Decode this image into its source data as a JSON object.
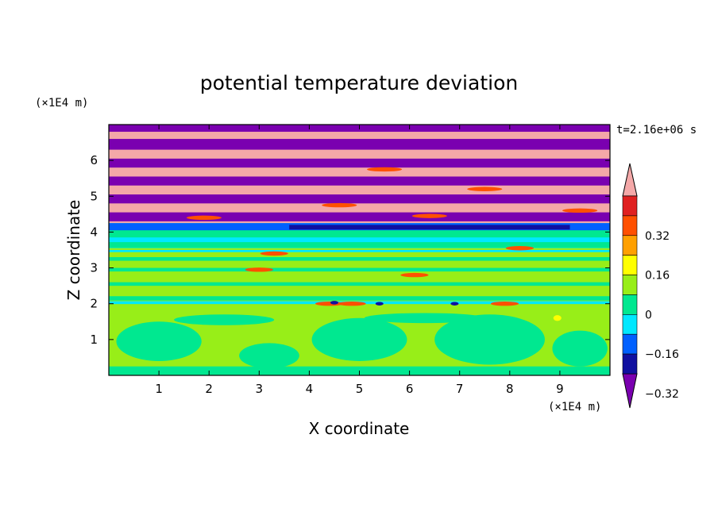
{
  "chart_data": {
    "type": "heatmap",
    "title": "potential temperature deviation",
    "xlabel": "X coordinate",
    "ylabel": "Z coordinate",
    "x_unit_label": "(×1E4 m)",
    "y_unit_label": "(×1E4 m)",
    "time_label": "t=2.16e+06 s",
    "xlim": [
      0,
      10
    ],
    "ylim": [
      0,
      7
    ],
    "x_ticks": [
      "1",
      "2",
      "3",
      "4",
      "5",
      "6",
      "7",
      "8",
      "9"
    ],
    "y_ticks": [
      "1",
      "2",
      "3",
      "4",
      "5",
      "6"
    ],
    "colorbar": {
      "levels": [
        -0.4,
        -0.32,
        -0.24,
        -0.16,
        -0.08,
        0,
        0.08,
        0.16,
        0.24,
        0.32,
        0.4
      ],
      "tick_labels": [
        "0.32",
        "0.16",
        "0",
        "−0.16",
        "−0.32"
      ],
      "colors": [
        "#7a00b0",
        "#1010a0",
        "#0060ff",
        "#00e8ff",
        "#00e890",
        "#98ee18",
        "#ffff00",
        "#ffa000",
        "#ff5000",
        "#e02020",
        "#f4a8a8"
      ]
    },
    "bands": [
      {
        "z": [
          0.0,
          1.75
        ],
        "description": "alternating light green and mint contours"
      },
      {
        "z": [
          1.75,
          3.55
        ],
        "description": "mostly light green with mint streaks"
      },
      {
        "z": [
          3.55,
          4.25
        ],
        "description": "blue/cyan transition layer"
      },
      {
        "z": [
          4.25,
          7.0
        ],
        "description": "alternating purple and pink stripes"
      }
    ]
  }
}
